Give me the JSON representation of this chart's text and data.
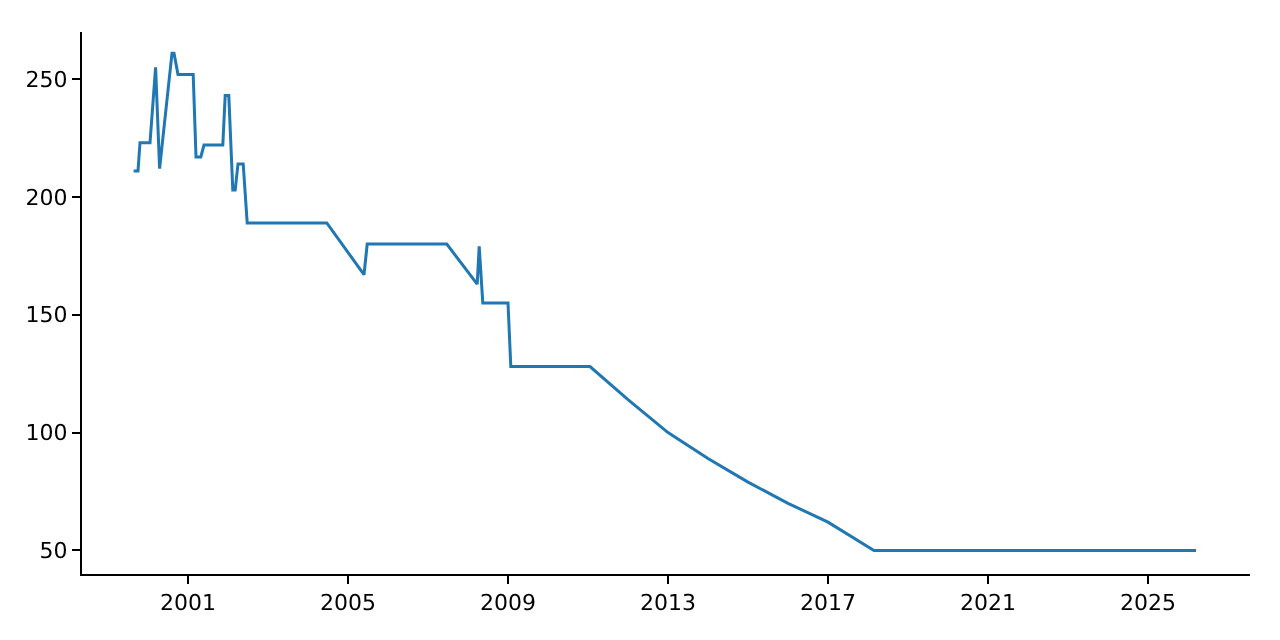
{
  "chart_data": {
    "type": "line",
    "x": [
      1999.64,
      1999.75,
      1999.8,
      2000.05,
      2000.19,
      2000.29,
      2000.6,
      2000.65,
      2000.75,
      2001.13,
      2001.2,
      2001.32,
      2001.4,
      2001.87,
      2001.93,
      2002.02,
      2002.12,
      2002.18,
      2002.25,
      2002.38,
      2002.48,
      2004.47,
      2005.4,
      2005.48,
      2007.47,
      2008.23,
      2008.28,
      2008.37,
      2009.0,
      2009.07,
      2011.05,
      2012,
      2013,
      2014,
      2015,
      2016,
      2017,
      2018.15,
      2026.2
    ],
    "series": [
      {
        "color": "#1f77b4",
        "values": [
          211,
          211,
          223,
          223,
          255,
          212,
          261,
          261,
          252,
          252,
          217,
          217,
          222,
          222,
          243,
          243,
          203,
          203,
          214,
          214,
          189,
          189,
          167,
          180,
          180,
          163,
          179,
          155,
          155,
          128,
          128,
          114,
          100,
          89,
          79,
          70,
          62,
          50,
          50
        ]
      }
    ],
    "xlim": [
      1998.35,
      2027.55
    ],
    "ylim": [
      40,
      270
    ],
    "xticks": [
      2001,
      2005,
      2009,
      2013,
      2017,
      2021,
      2025
    ],
    "yticks": [
      50,
      100,
      150,
      200,
      250
    ],
    "marker": "none",
    "line_style": "solid"
  }
}
